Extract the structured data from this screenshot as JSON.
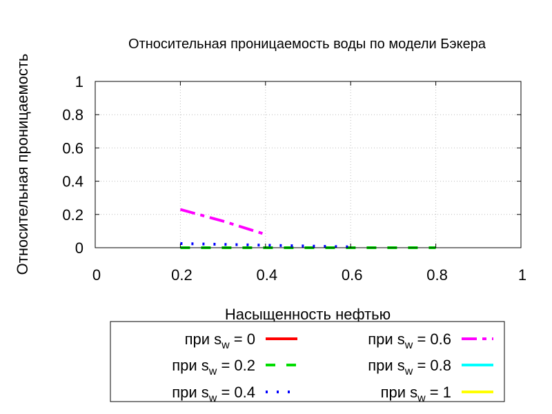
{
  "chart_data": {
    "type": "line",
    "title": "Относительная проницаемость воды по модели Бэкера",
    "xlabel": "Насыщенность нефтью",
    "ylabel": "Относительная проницаемость",
    "xlim": [
      0,
      1
    ],
    "ylim": [
      0,
      1
    ],
    "x_ticks": [
      "0",
      "0.2",
      "0.4",
      "0.6",
      "0.8",
      "1"
    ],
    "y_ticks": [
      "0",
      "0.2",
      "0.4",
      "0.6",
      "0.8",
      "1"
    ],
    "grid": true,
    "legend_placement": "bottom",
    "series": [
      {
        "name": "при s",
        "sub": "w",
        "suffix": " = 0",
        "color": "#ff0000",
        "dash": "solid",
        "x": [],
        "y": []
      },
      {
        "name": "при s",
        "sub": "w",
        "suffix": " = 0.2",
        "color": "#00dd00",
        "dash": "dashed",
        "x": [
          0.2,
          0.4,
          0.6,
          0.8
        ],
        "y": [
          0.0,
          0.0,
          0.0,
          0.0
        ]
      },
      {
        "name": "при s",
        "sub": "w",
        "suffix": " = 0.4",
        "color": "#0000ff",
        "dash": "dotted",
        "x": [
          0.2,
          0.3,
          0.4,
          0.5,
          0.6
        ],
        "y": [
          0.025,
          0.02,
          0.015,
          0.01,
          0.005
        ]
      },
      {
        "name": "при s",
        "sub": "w",
        "suffix": " = 0.6",
        "color": "#ff00ff",
        "dash": "dashdot",
        "x": [
          0.2,
          0.3,
          0.4
        ],
        "y": [
          0.23,
          0.16,
          0.08
        ]
      },
      {
        "name": "при s",
        "sub": "w",
        "suffix": " = 0.8",
        "color": "#00ffff",
        "dash": "solid",
        "x": [],
        "y": []
      },
      {
        "name": "при s",
        "sub": "w",
        "suffix": " = 1",
        "color": "#ffff00",
        "dash": "solid",
        "x": [],
        "y": []
      }
    ]
  }
}
